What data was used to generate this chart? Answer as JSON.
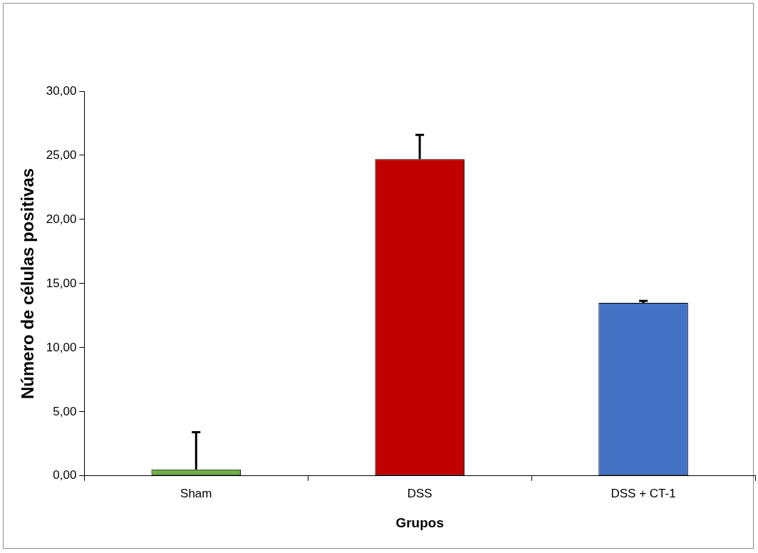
{
  "chart_data": {
    "type": "bar",
    "xlabel": "Grupos",
    "ylabel": "Número de células positivas",
    "categories": [
      "Sham",
      "DSS",
      "DSS + CT-1"
    ],
    "values": [
      0.5,
      24.7,
      13.5
    ],
    "colors": [
      "#70ad47",
      "#c00000",
      "#4472c4"
    ],
    "errors": [
      [
        0.5,
        3.4
      ],
      [
        24.7,
        26.6
      ],
      [
        13.5,
        13.65
      ]
    ],
    "ylim": [
      0,
      30
    ],
    "yticks": [
      {
        "value": 0,
        "label": "0,00"
      },
      {
        "value": 5,
        "label": "5,00"
      },
      {
        "value": 10,
        "label": "10,00"
      },
      {
        "value": 15,
        "label": "15,00"
      },
      {
        "value": 20,
        "label": "20,00"
      },
      {
        "value": 25,
        "label": "25,00"
      },
      {
        "value": 30,
        "label": "30,00"
      }
    ],
    "grid": false,
    "legend": false
  }
}
